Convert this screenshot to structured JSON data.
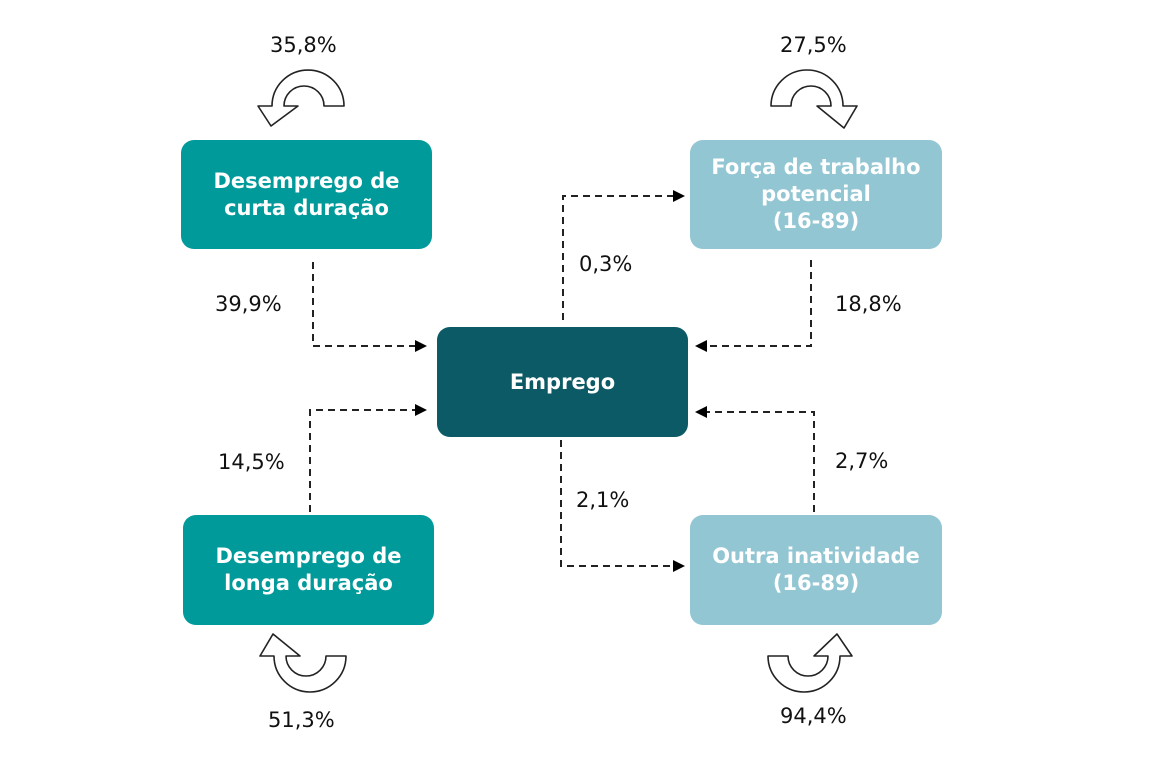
{
  "colors": {
    "teal": "#009a9a",
    "dark_teal": "#0b5a65",
    "light_blue": "#93c6d3",
    "line": "#222222"
  },
  "nodes": {
    "short_term": "Desemprego de\ncurta duração",
    "long_term": "Desemprego de\nlonga duração",
    "employment": "Emprego",
    "potential": "Força de trabalho\npotencial\n(16-89)",
    "other_inactivity": "Outra inatividade\n(16-89)"
  },
  "flows": {
    "short_term_self": "35,8%",
    "potential_self": "27,5%",
    "long_term_self": "51,3%",
    "other_inactivity_self": "94,4%",
    "short_term_to_employment": "39,9%",
    "long_term_to_employment": "14,5%",
    "employment_to_potential": "0,3%",
    "potential_to_employment": "18,8%",
    "employment_to_other_inactivity": "2,1%",
    "other_inactivity_to_employment": "2,7%"
  }
}
